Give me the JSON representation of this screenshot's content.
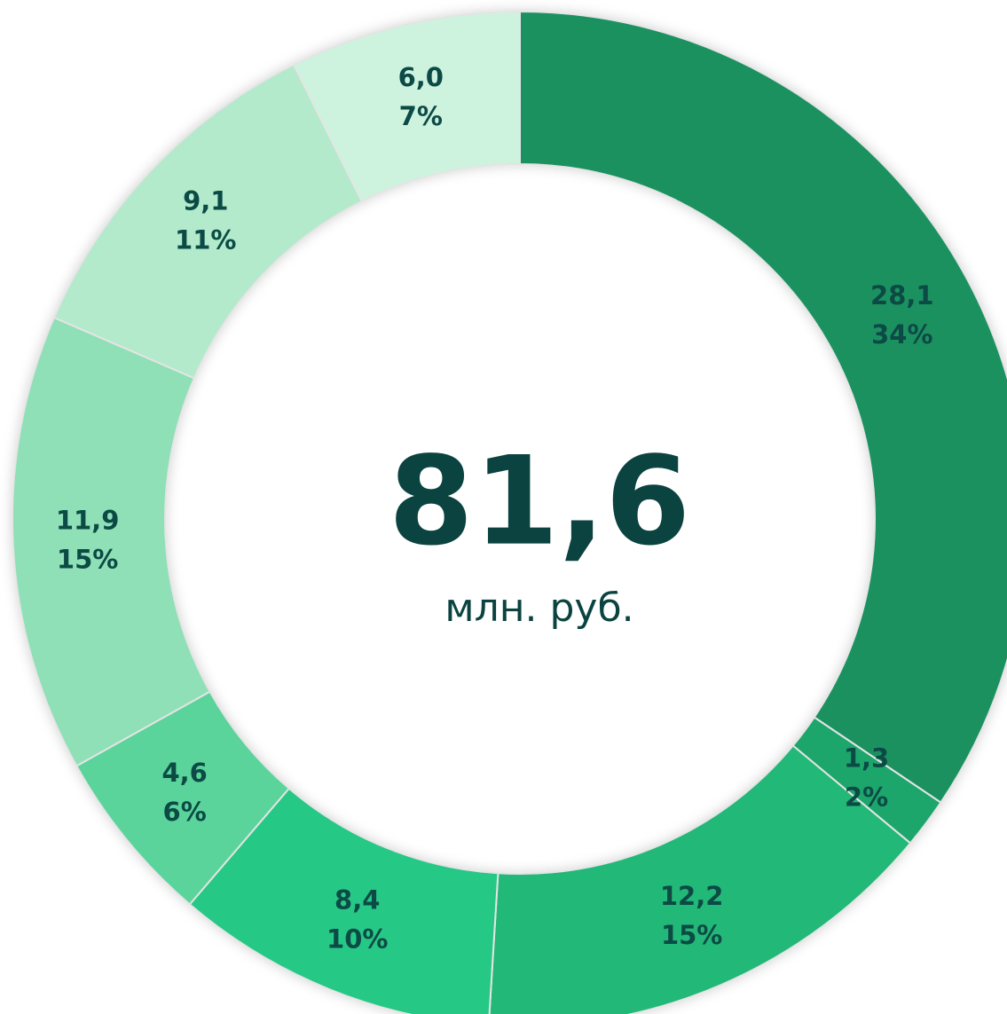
{
  "chart_data": {
    "type": "donut",
    "center_value_label": "81,6",
    "center_unit": "млн. руб.",
    "values": [
      28.1,
      1.3,
      12.2,
      8.4,
      4.6,
      11.9,
      9.1,
      6.0
    ],
    "value_labels": [
      "28,1",
      "1,3",
      "12,2",
      "8,4",
      "4,6",
      "11,9",
      "9,1",
      "6,0"
    ],
    "percent_labels": [
      "34%",
      "2%",
      "15%",
      "10%",
      "6%",
      "15%",
      "11%",
      "7%"
    ],
    "colors": [
      "#1a9161",
      "#1ea66c",
      "#23b877",
      "#28c886",
      "#5ad49b",
      "#8fe0b6",
      "#b2eacb",
      "#cdf3df"
    ]
  }
}
